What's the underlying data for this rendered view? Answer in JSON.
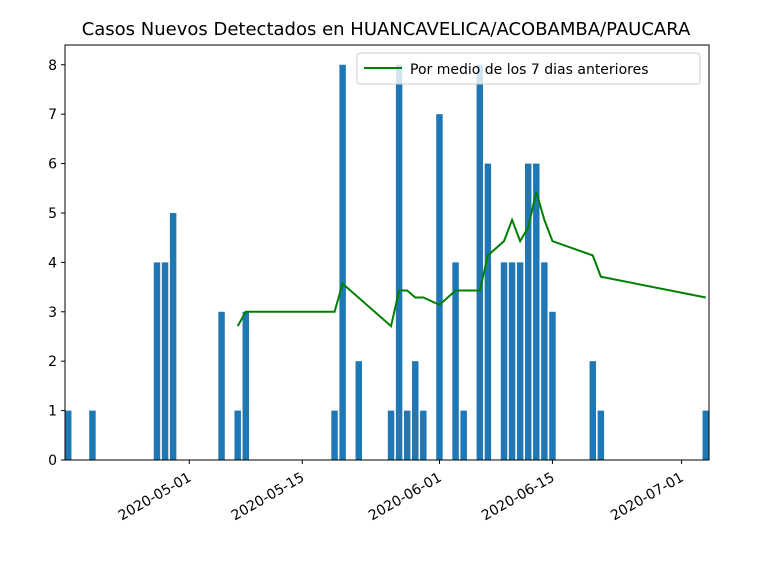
{
  "chart_data": {
    "type": "bar",
    "title": "Casos Nuevos Detectados en HUANCAVELICA/ACOBAMBA/PAUCARA",
    "xlabel": "",
    "ylabel": "",
    "ylim": [
      0,
      8.4
    ],
    "yticks": [
      0,
      1,
      2,
      3,
      4,
      5,
      6,
      7,
      8
    ],
    "xticks": [
      "2020-05-01",
      "2020-05-15",
      "2020-06-01",
      "2020-06-15",
      "2020-07-01"
    ],
    "legend": {
      "placement": "upper right",
      "entries": [
        "Por medio de los 7 dias anteriores"
      ]
    },
    "colors": {
      "bar": "#1f77b4",
      "line": "#008000"
    },
    "bars": [
      {
        "x": "2020-04-16",
        "y": 1
      },
      {
        "x": "2020-04-19",
        "y": 1
      },
      {
        "x": "2020-04-27",
        "y": 4
      },
      {
        "x": "2020-04-28",
        "y": 4
      },
      {
        "x": "2020-04-29",
        "y": 5
      },
      {
        "x": "2020-05-05",
        "y": 3
      },
      {
        "x": "2020-05-07",
        "y": 1
      },
      {
        "x": "2020-05-08",
        "y": 3
      },
      {
        "x": "2020-05-19",
        "y": 1
      },
      {
        "x": "2020-05-20",
        "y": 8
      },
      {
        "x": "2020-05-22",
        "y": 2
      },
      {
        "x": "2020-05-26",
        "y": 1
      },
      {
        "x": "2020-05-27",
        "y": 8
      },
      {
        "x": "2020-05-28",
        "y": 1
      },
      {
        "x": "2020-05-29",
        "y": 2
      },
      {
        "x": "2020-05-30",
        "y": 1
      },
      {
        "x": "2020-06-01",
        "y": 7
      },
      {
        "x": "2020-06-03",
        "y": 4
      },
      {
        "x": "2020-06-04",
        "y": 1
      },
      {
        "x": "2020-06-06",
        "y": 8
      },
      {
        "x": "2020-06-07",
        "y": 6
      },
      {
        "x": "2020-06-09",
        "y": 4
      },
      {
        "x": "2020-06-10",
        "y": 4
      },
      {
        "x": "2020-06-11",
        "y": 4
      },
      {
        "x": "2020-06-12",
        "y": 6
      },
      {
        "x": "2020-06-13",
        "y": 6
      },
      {
        "x": "2020-06-14",
        "y": 4
      },
      {
        "x": "2020-06-15",
        "y": 3
      },
      {
        "x": "2020-06-20",
        "y": 2
      },
      {
        "x": "2020-06-21",
        "y": 1
      },
      {
        "x": "2020-07-04",
        "y": 1
      }
    ],
    "series": [
      {
        "name": "Por medio de los 7 dias anteriores",
        "points": [
          {
            "x": "2020-05-07",
            "y": 2.71
          },
          {
            "x": "2020-05-08",
            "y": 3.0
          },
          {
            "x": "2020-05-19",
            "y": 3.0
          },
          {
            "x": "2020-05-20",
            "y": 3.57
          },
          {
            "x": "2020-05-26",
            "y": 2.71
          },
          {
            "x": "2020-05-27",
            "y": 3.43
          },
          {
            "x": "2020-05-28",
            "y": 3.43
          },
          {
            "x": "2020-05-29",
            "y": 3.29
          },
          {
            "x": "2020-05-30",
            "y": 3.29
          },
          {
            "x": "2020-06-01",
            "y": 3.14
          },
          {
            "x": "2020-06-03",
            "y": 3.43
          },
          {
            "x": "2020-06-04",
            "y": 3.43
          },
          {
            "x": "2020-06-06",
            "y": 3.43
          },
          {
            "x": "2020-06-07",
            "y": 4.14
          },
          {
            "x": "2020-06-09",
            "y": 4.43
          },
          {
            "x": "2020-06-10",
            "y": 4.86
          },
          {
            "x": "2020-06-11",
            "y": 4.43
          },
          {
            "x": "2020-06-12",
            "y": 4.71
          },
          {
            "x": "2020-06-13",
            "y": 5.43
          },
          {
            "x": "2020-06-14",
            "y": 4.86
          },
          {
            "x": "2020-06-15",
            "y": 4.43
          },
          {
            "x": "2020-06-20",
            "y": 4.14
          },
          {
            "x": "2020-06-21",
            "y": 3.71
          },
          {
            "x": "2020-07-04",
            "y": 3.29
          }
        ]
      }
    ]
  }
}
